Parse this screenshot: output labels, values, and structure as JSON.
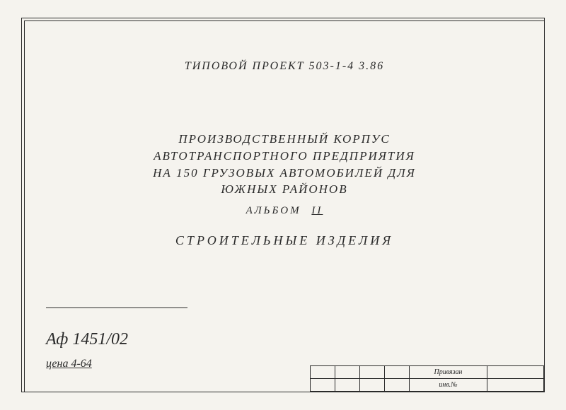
{
  "document": {
    "header": "ТИПОВОЙ  ПРОЕКТ  503-1-4 3.86",
    "title_line1": "ПРОИЗВОДСТВЕННЫЙ  КОРПУС",
    "title_line2": "АВТОТРАНСПОРТНОГО  ПРЕДПРИЯТИЯ",
    "title_line3": "НА  150  ГРУЗОВЫХ  АВТОМОБИЛЕЙ  ДЛЯ",
    "title_line4": "ЮЖНЫХ    РАЙОНОВ",
    "album_label": "АЛЬБОМ",
    "album_number": "II",
    "subtitle": "СТРОИТЕЛЬНЫЕ  ИЗДЕЛИЯ",
    "ref_code": "Аф 1451/02",
    "price": "цена 4-64",
    "stamp": {
      "row1_label": "Привязан",
      "row2_label": "инв.№"
    },
    "colors": {
      "background": "#f5f3ee",
      "ink": "#2a2a2a"
    }
  }
}
